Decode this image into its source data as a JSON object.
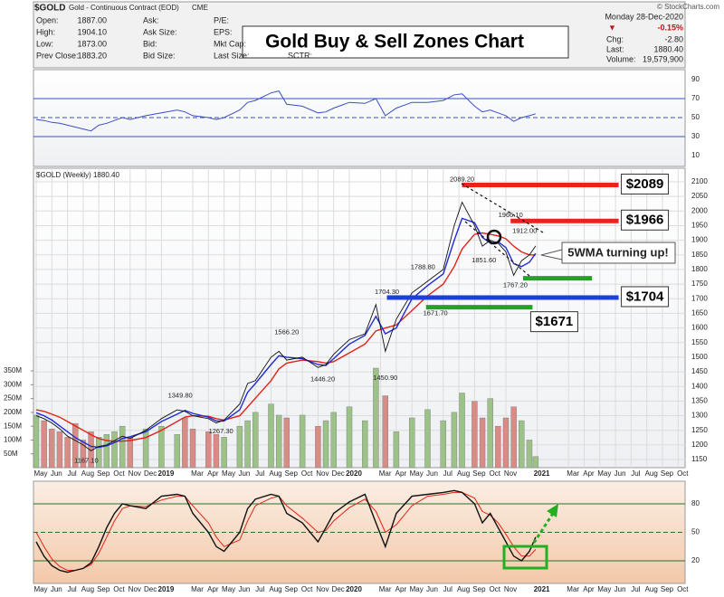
{
  "header": {
    "symbol": "$GOLD",
    "name": "Gold - Continuous Contract (EOD)",
    "exchange": "CME",
    "fields": [
      [
        "Open:",
        "1887.00"
      ],
      [
        "High:",
        "1904.10"
      ],
      [
        "Low:",
        "1873.00"
      ],
      [
        "Prev Close:",
        "1883.20"
      ]
    ],
    "col2": [
      "Ask:",
      "Ask Size:",
      "Bid:",
      "Bid Size:"
    ],
    "col3": [
      "P/E:",
      "EPS:",
      "Mkt Cap:",
      "Last Size:"
    ],
    "sctr": "SCTR:",
    "date": "Monday 28-Dec-2020",
    "arrow": "▼",
    "pct": "-0.15%",
    "right_fields": [
      [
        "Chg:",
        "-2.80"
      ],
      [
        "Last:",
        "1880.40"
      ],
      [
        "Volume:",
        "19,579,900"
      ]
    ],
    "logo": "© StockCharts.com",
    "banner": "Gold Buy & Sell Zones Chart"
  },
  "chart_data": [
    {
      "type": "line",
      "ylim": [
        0,
        100
      ],
      "yticks": [
        10,
        30,
        50,
        70,
        90
      ],
      "x": [
        0,
        0.5,
        1,
        1.5,
        2,
        2.5,
        3,
        3.5,
        4,
        4.5,
        5,
        5.5,
        6,
        7,
        8,
        9,
        9.5,
        10,
        11,
        11.5,
        12,
        13,
        13.5,
        14,
        15,
        15.5,
        16,
        17,
        18,
        18.5,
        19,
        20,
        21,
        21.7,
        22.3,
        23,
        24,
        25,
        26,
        26.7,
        27.2,
        28,
        28.5,
        29,
        29.5,
        30,
        30.5,
        31,
        31.5,
        31.9
      ],
      "series": [
        {
          "color": "#3b4fc4",
          "values": [
            48,
            47,
            45,
            44,
            42,
            40,
            38,
            36,
            42,
            44,
            47,
            50,
            48,
            52,
            55,
            58,
            56,
            52,
            50,
            48,
            50,
            58,
            66,
            68,
            76,
            78,
            64,
            62,
            55,
            56,
            60,
            66,
            65,
            70,
            52,
            60,
            66,
            66,
            68,
            74,
            75,
            62,
            56,
            58,
            55,
            52,
            46,
            50,
            52,
            54
          ]
        }
      ]
    },
    {
      "type": "line",
      "label": "$GOLD (Weekly) 1880.40",
      "ylim": [
        1130,
        2120
      ],
      "yticks": [
        1150,
        1200,
        1250,
        1300,
        1350,
        1400,
        1450,
        1500,
        1550,
        1600,
        1650,
        1700,
        1750,
        1800,
        1850,
        1900,
        1950,
        2000,
        2050,
        2100
      ],
      "xticks": [
        {
          "value": 0,
          "label": "May"
        },
        {
          "value": 1,
          "label": "Jun"
        },
        {
          "value": 2,
          "label": "Jul"
        },
        {
          "value": 3,
          "label": "Aug"
        },
        {
          "value": 4,
          "label": "Sep"
        },
        {
          "value": 5,
          "label": "Oct"
        },
        {
          "value": 6,
          "label": "Nov"
        },
        {
          "value": 7,
          "label": "Dec"
        },
        {
          "value": 8,
          "label": "2019"
        },
        {
          "value": 10,
          "label": "Mar"
        },
        {
          "value": 11,
          "label": "Apr"
        },
        {
          "value": 12,
          "label": "May"
        },
        {
          "value": 13,
          "label": "Jun"
        },
        {
          "value": 14,
          "label": "Jul"
        },
        {
          "value": 15,
          "label": "Aug"
        },
        {
          "value": 16,
          "label": "Sep"
        },
        {
          "value": 17,
          "label": "Oct"
        },
        {
          "value": 18,
          "label": "Nov"
        },
        {
          "value": 19,
          "label": "Dec"
        },
        {
          "value": 20,
          "label": "2020"
        },
        {
          "value": 22,
          "label": "Mar"
        },
        {
          "value": 23,
          "label": "Apr"
        },
        {
          "value": 24,
          "label": "May"
        },
        {
          "value": 25,
          "label": "Jun"
        },
        {
          "value": 26,
          "label": "Jul"
        },
        {
          "value": 27,
          "label": "Aug"
        },
        {
          "value": 28,
          "label": "Sep"
        },
        {
          "value": 29,
          "label": "Oct"
        },
        {
          "value": 30,
          "label": "Nov"
        },
        {
          "value": 32,
          "label": "2021"
        },
        {
          "value": 34,
          "label": "Mar"
        },
        {
          "value": 35,
          "label": "Apr"
        },
        {
          "value": 36,
          "label": "May"
        },
        {
          "value": 37,
          "label": "Jun"
        },
        {
          "value": 38,
          "label": "Jul"
        },
        {
          "value": 39,
          "label": "Aug"
        },
        {
          "value": 40,
          "label": "Sep"
        },
        {
          "value": 41,
          "label": "Oct"
        }
      ],
      "x": [
        0,
        0.5,
        1,
        1.5,
        2,
        2.5,
        3,
        3.5,
        4,
        4.5,
        5,
        5.5,
        6,
        7,
        8,
        9,
        9.5,
        10,
        11,
        11.5,
        12,
        13,
        13.5,
        14,
        15,
        15.5,
        16,
        17,
        18,
        18.5,
        19,
        20,
        21,
        21.7,
        22.3,
        23,
        24,
        25,
        26,
        26.7,
        27.2,
        28,
        28.5,
        29,
        29.5,
        30,
        30.5,
        31,
        31.5,
        31.9
      ],
      "series": [
        {
          "color": "#111111",
          "values": [
            1300,
            1290,
            1275,
            1255,
            1230,
            1215,
            1200,
            1180,
            1195,
            1200,
            1215,
            1230,
            1222,
            1250,
            1290,
            1320,
            1315,
            1300,
            1290,
            1275,
            1285,
            1340,
            1410,
            1420,
            1500,
            1520,
            1490,
            1500,
            1465,
            1475,
            1510,
            1560,
            1580,
            1680,
            1520,
            1630,
            1720,
            1760,
            1800,
            1950,
            2030,
            1950,
            1880,
            1900,
            1890,
            1860,
            1780,
            1830,
            1850,
            1880.4
          ]
        },
        {
          "color": "#1f2bd6",
          "values": [
            1310,
            1300,
            1285,
            1265,
            1245,
            1225,
            1210,
            1195,
            1192,
            1197,
            1208,
            1222,
            1228,
            1245,
            1280,
            1305,
            1318,
            1308,
            1295,
            1282,
            1282,
            1320,
            1380,
            1410,
            1475,
            1505,
            1500,
            1495,
            1475,
            1472,
            1495,
            1545,
            1575,
            1640,
            1580,
            1600,
            1700,
            1745,
            1785,
            1900,
            1975,
            1960,
            1910,
            1890,
            1895,
            1875,
            1820,
            1810,
            1825,
            1855
          ]
        },
        {
          "color": "#e02418",
          "values": [
            1320,
            1315,
            1305,
            1295,
            1280,
            1265,
            1250,
            1235,
            1222,
            1215,
            1212,
            1213,
            1215,
            1225,
            1250,
            1280,
            1295,
            1300,
            1298,
            1290,
            1285,
            1300,
            1330,
            1360,
            1420,
            1460,
            1480,
            1490,
            1485,
            1480,
            1485,
            1515,
            1545,
            1590,
            1600,
            1610,
            1660,
            1710,
            1750,
            1810,
            1870,
            1920,
            1925,
            1920,
            1915,
            1905,
            1880,
            1860,
            1850,
            1850
          ]
        }
      ],
      "volume": {
        "ylim": [
          0,
          360000000
        ],
        "yticks": [
          {
            "value": 50000000,
            "label": "50M"
          },
          {
            "value": 100000000,
            "label": "100M"
          },
          {
            "value": 150000000,
            "label": "150M"
          },
          {
            "value": 200000000,
            "label": "200M"
          },
          {
            "value": 250000000,
            "label": "250M"
          },
          {
            "value": 300000000,
            "label": "300M"
          },
          {
            "value": 350000000,
            "label": "350M"
          }
        ],
        "up_color": "#9cc288",
        "down_color": "#d98b86",
        "values": [
          190000000,
          170000000,
          140000000,
          130000000,
          110000000,
          160000000,
          100000000,
          130000000,
          110000000,
          120000000,
          130000000,
          150000000,
          110000000,
          140000000,
          150000000,
          120000000,
          180000000,
          140000000,
          130000000,
          120000000,
          110000000,
          150000000,
          170000000,
          200000000,
          230000000,
          190000000,
          180000000,
          190000000,
          150000000,
          170000000,
          200000000,
          220000000,
          170000000,
          410000000,
          260000000,
          130000000,
          180000000,
          210000000,
          170000000,
          200000000,
          270000000,
          240000000,
          180000000,
          250000000,
          150000000,
          180000000,
          220000000,
          170000000,
          100000000,
          40000000
        ]
      },
      "annotations": [
        {
          "value": 2089.2,
          "label": "2089.20",
          "x": 27.2
        },
        {
          "value": 1966.1,
          "label": "1966.10",
          "x": 30.3
        },
        {
          "value": 1912,
          "label": "1912.00",
          "x": 31.2
        },
        {
          "value": 1851.6,
          "label": "1851.60",
          "x": 28.6
        },
        {
          "value": 1767.2,
          "label": "1767.20",
          "x": 30.6
        },
        {
          "value": 1788.8,
          "label": "1788.80",
          "x": 24.7
        },
        {
          "value": 1704.3,
          "label": "1704.30",
          "x": 22.4
        },
        {
          "value": 1671.7,
          "label": "1671.70",
          "x": 25.5
        },
        {
          "value": 1566.2,
          "label": "1566.20",
          "x": 16
        },
        {
          "value": 1446.2,
          "label": "1446.20",
          "x": 18.3
        },
        {
          "value": 1450.9,
          "label": "1450.90",
          "x": 22.3
        },
        {
          "value": 1349.8,
          "label": "1349.80",
          "x": 9.2
        },
        {
          "value": 1267.3,
          "label": "1267.30",
          "x": 11.8
        },
        {
          "value": 1167.1,
          "label": "1167.10",
          "x": 3.2
        }
      ],
      "zones": [
        {
          "label": "$2089",
          "value": 2089,
          "color": "#e8231a",
          "x": [
            27.2,
            37.2
          ]
        },
        {
          "label": "$1966",
          "value": 1966,
          "color": "#e8231a",
          "x": [
            30.3,
            37.2
          ]
        },
        {
          "label": "$1704",
          "value": 1704,
          "color": "#1b3fe0",
          "x": [
            22.4,
            37.2
          ]
        },
        {
          "label": "$1671",
          "value": 1671,
          "color": "#1fa51f",
          "x": [
            24.9,
            31.7
          ]
        },
        {
          "value": 1770,
          "color": "#1fa51f",
          "x": [
            31.1,
            35.5
          ]
        }
      ],
      "callout": "5WMA turning up!"
    },
    {
      "type": "line",
      "ylim": [
        0,
        100
      ],
      "yticks": [
        20,
        50,
        80
      ],
      "x": [
        0,
        0.5,
        1,
        1.5,
        2,
        2.5,
        3,
        3.5,
        4,
        4.5,
        5,
        5.5,
        6,
        7,
        8,
        9,
        9.5,
        10,
        11,
        11.5,
        12,
        13,
        13.5,
        14,
        15,
        15.5,
        16,
        17,
        18,
        18.5,
        19,
        20,
        21,
        21.7,
        22.3,
        23,
        24,
        25,
        26,
        26.7,
        27.2,
        28,
        28.5,
        29,
        29.5,
        30,
        30.5,
        31,
        31.5,
        31.9
      ],
      "series": [
        {
          "color": "#111111",
          "values": [
            40,
            25,
            15,
            10,
            8,
            10,
            12,
            18,
            35,
            55,
            70,
            80,
            78,
            75,
            88,
            90,
            88,
            70,
            50,
            35,
            30,
            50,
            75,
            85,
            90,
            88,
            70,
            60,
            40,
            55,
            70,
            82,
            90,
            60,
            35,
            70,
            88,
            90,
            92,
            94,
            92,
            80,
            60,
            70,
            55,
            40,
            25,
            20,
            30,
            45
          ]
        },
        {
          "color": "#e02418",
          "values": [
            50,
            35,
            22,
            14,
            10,
            10,
            12,
            16,
            28,
            45,
            62,
            75,
            78,
            77,
            84,
            88,
            88,
            78,
            60,
            45,
            35,
            42,
            62,
            78,
            86,
            88,
            78,
            65,
            50,
            52,
            62,
            76,
            85,
            72,
            50,
            58,
            78,
            88,
            90,
            92,
            92,
            86,
            72,
            68,
            60,
            48,
            35,
            25,
            25,
            32
          ]
        }
      ]
    }
  ]
}
